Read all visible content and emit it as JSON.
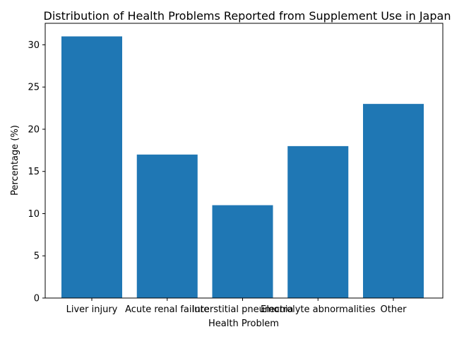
{
  "chart_data": {
    "type": "bar",
    "title": "Distribution of Health Problems Reported from Supplement Use in Japan",
    "xlabel": "Health Problem",
    "ylabel": "Percentage (%)",
    "categories": [
      "Liver injury",
      "Acute renal failure",
      "Interstitial pneumonia",
      "Electrolyte abnormalities",
      "Other"
    ],
    "values": [
      31,
      17,
      11,
      18,
      23
    ],
    "ylim": [
      0,
      32.55
    ],
    "yticks": [
      0,
      5,
      10,
      15,
      20,
      25,
      30
    ],
    "bar_color": "#1f77b4",
    "grid": false,
    "legend": "none"
  }
}
